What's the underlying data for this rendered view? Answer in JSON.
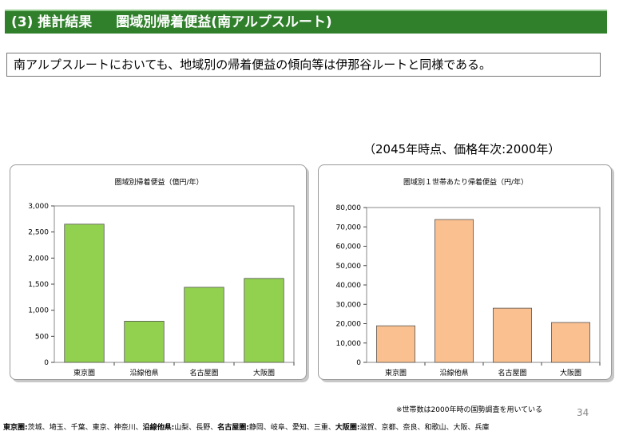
{
  "header": {
    "section": "(3) 推計結果",
    "title": "圏域別帰着便益(南アルプスルート)"
  },
  "summary": "南アルプスルートにおいても、地域別の帰着便益の傾向等は伊那谷ルートと同様である。",
  "note_top": "（2045年時点、価格年次:2000年）",
  "chart_data": [
    {
      "type": "bar",
      "title": "圏域別帰着便益（億円/年）",
      "categories": [
        "東京圏",
        "沿線他県",
        "名古屋圏",
        "大阪圏"
      ],
      "values": [
        2650,
        790,
        1440,
        1610
      ],
      "ylim": [
        0,
        3000
      ],
      "yticks": [
        0,
        500,
        1000,
        1500,
        2000,
        2500,
        3000
      ],
      "tick_labels": [
        "0",
        "500",
        "1,000",
        "1,500",
        "2,000",
        "2,500",
        "3,000"
      ],
      "bar_color": "#92d050",
      "grid": false
    },
    {
      "type": "bar",
      "title": "圏域別１世帯あたり帰着便益（円/年）",
      "categories": [
        "東京圏",
        "沿線他県",
        "名古屋圏",
        "大阪圏"
      ],
      "values": [
        18900,
        73800,
        28000,
        20600
      ],
      "ylim": [
        0,
        80000
      ],
      "yticks": [
        0,
        10000,
        20000,
        30000,
        40000,
        50000,
        60000,
        70000,
        80000
      ],
      "tick_labels": [
        "0",
        "10,000",
        "20,000",
        "30,000",
        "40,000",
        "50,000",
        "60,000",
        "70,000",
        "80,000"
      ],
      "bar_color": "#fac090",
      "grid": false
    }
  ],
  "footnote": "※世帯数は2000年時の国勢調査を用いている",
  "page_number": "34",
  "regions": [
    {
      "label": "東京圏:",
      "members": "茨城、埼玉、千葉、東京、神奈川、"
    },
    {
      "label": "沿線他県:",
      "members": "山梨、長野、"
    },
    {
      "label": "名古屋圏:",
      "members": "静岡、岐阜、愛知、三重、"
    },
    {
      "label": "大阪圏:",
      "members": "滋賀、京都、奈良、和歌山、大阪、兵庫"
    }
  ]
}
